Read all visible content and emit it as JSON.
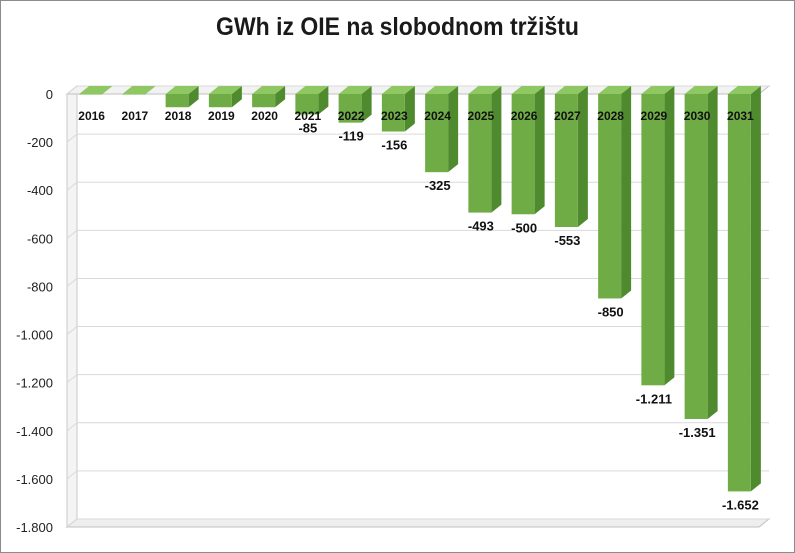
{
  "chart_data": {
    "type": "bar",
    "title": "GWh iz OIE na slobodnom tržištu",
    "xlabel": "",
    "ylabel": "",
    "categories": [
      "2016",
      "2017",
      "2018",
      "2019",
      "2020",
      "2021",
      "2022",
      "2023",
      "2024",
      "2025",
      "2026",
      "2027",
      "2028",
      "2029",
      "2030",
      "2031"
    ],
    "values": [
      -1,
      -1,
      -55,
      -55,
      -55,
      -85,
      -119,
      -156,
      -325,
      -493,
      -500,
      -553,
      -850,
      -1211,
      -1351,
      -1652
    ],
    "data_labels": [
      "",
      "",
      "",
      "",
      "",
      "-85",
      "-119",
      "-156",
      "-325",
      "-493",
      "-500",
      "-553",
      "-850",
      "-1.211",
      "-1.351",
      "-1.652"
    ],
    "ylim": [
      -1800,
      0
    ],
    "y_ticks": [
      0,
      -200,
      -400,
      -600,
      -800,
      -1000,
      -1200,
      -1400,
      -1600,
      -1800
    ],
    "y_tick_labels": [
      "0",
      "-200",
      "-400",
      "-600",
      "-800",
      "-1.000",
      "-1.200",
      "-1.400",
      "-1.600",
      "-1.800"
    ],
    "grid": true,
    "legend": "none",
    "style": "3d-columns",
    "colors": {
      "bar_front": "#6fac46",
      "bar_side": "#4f8a2e",
      "bar_top": "#8fc862"
    }
  }
}
